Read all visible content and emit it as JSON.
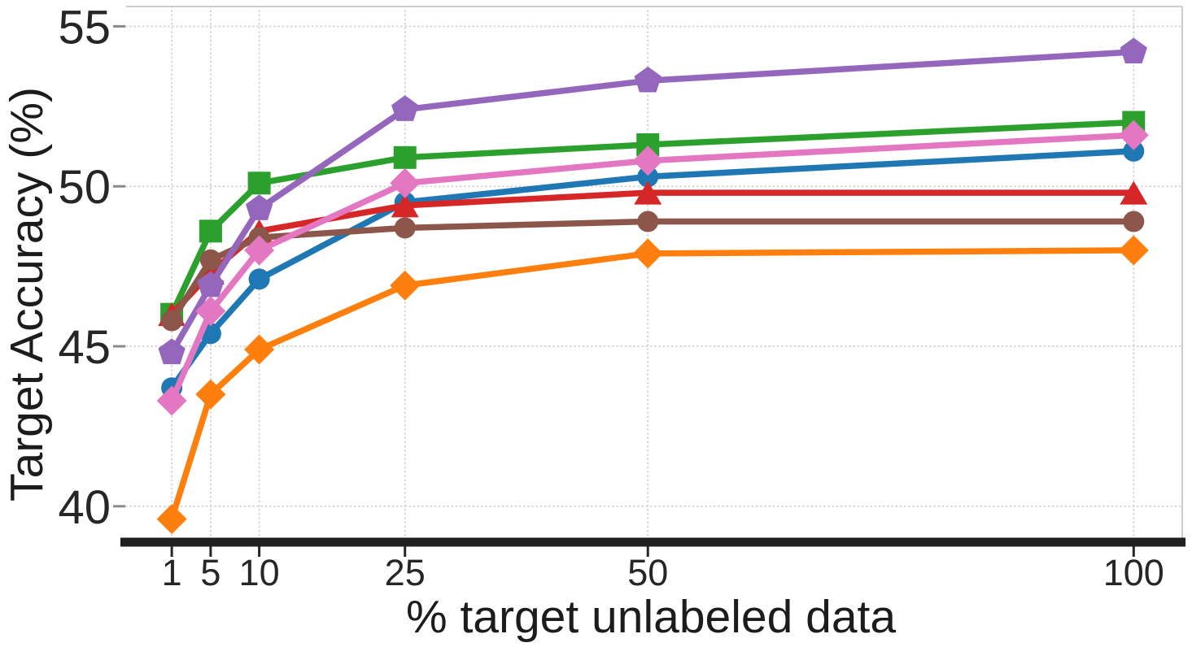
{
  "chart_data": {
    "type": "line",
    "title": "",
    "xlabel": "% target unlabeled data",
    "ylabel": "Target Accuracy (%)",
    "x_scale": "linear",
    "x": [
      1,
      5,
      10,
      25,
      50,
      100
    ],
    "xticks": [
      "1",
      "5",
      "10",
      "25",
      "50",
      "100"
    ],
    "xtick_values": [
      1,
      5,
      10,
      25,
      50,
      100
    ],
    "yticks": [
      "40",
      "45",
      "50",
      "55"
    ],
    "ytick_values": [
      40,
      45,
      50,
      55
    ],
    "xlim": [
      -3.7,
      105.0
    ],
    "ylim": [
      38.98,
      55.62
    ],
    "grid": true,
    "grid_style": "dotted",
    "legend": "none",
    "series": [
      {
        "name": "blue-circle-series",
        "color": "#1f77b4",
        "marker": "circle",
        "values": [
          43.7,
          45.4,
          47.1,
          49.5,
          50.3,
          51.1
        ]
      },
      {
        "name": "orange-diamond-series",
        "color": "#ff7f0e",
        "marker": "diamond",
        "values": [
          39.6,
          43.5,
          44.9,
          46.9,
          47.9,
          48.0
        ]
      },
      {
        "name": "green-square-series",
        "color": "#2ca02c",
        "marker": "square",
        "values": [
          46.0,
          48.6,
          50.1,
          50.9,
          51.3,
          52.0
        ]
      },
      {
        "name": "red-triangle-series",
        "color": "#d62728",
        "marker": "triangle",
        "values": [
          46.0,
          47.3,
          48.6,
          49.4,
          49.8,
          49.8
        ]
      },
      {
        "name": "brown-circle-series",
        "color": "#8c564b",
        "marker": "circle",
        "values": [
          45.8,
          47.7,
          48.4,
          48.7,
          48.9,
          48.9
        ]
      },
      {
        "name": "purple-pentagon-series",
        "color": "#9467bd",
        "marker": "pentagon",
        "values": [
          44.8,
          46.9,
          49.3,
          52.4,
          53.3,
          54.2
        ]
      },
      {
        "name": "pink-diamond-series",
        "color": "#e377c2",
        "marker": "diamond",
        "values": [
          43.3,
          46.1,
          48.0,
          50.1,
          50.8,
          51.6
        ]
      }
    ],
    "style": {
      "grid_color": "#d4d4d4",
      "spine_bottom_color": "#1f1f1f",
      "spine_light_color": "#cccccc",
      "tick_color_x": "#262626",
      "tick_color_y": "#8a8a8a"
    }
  }
}
